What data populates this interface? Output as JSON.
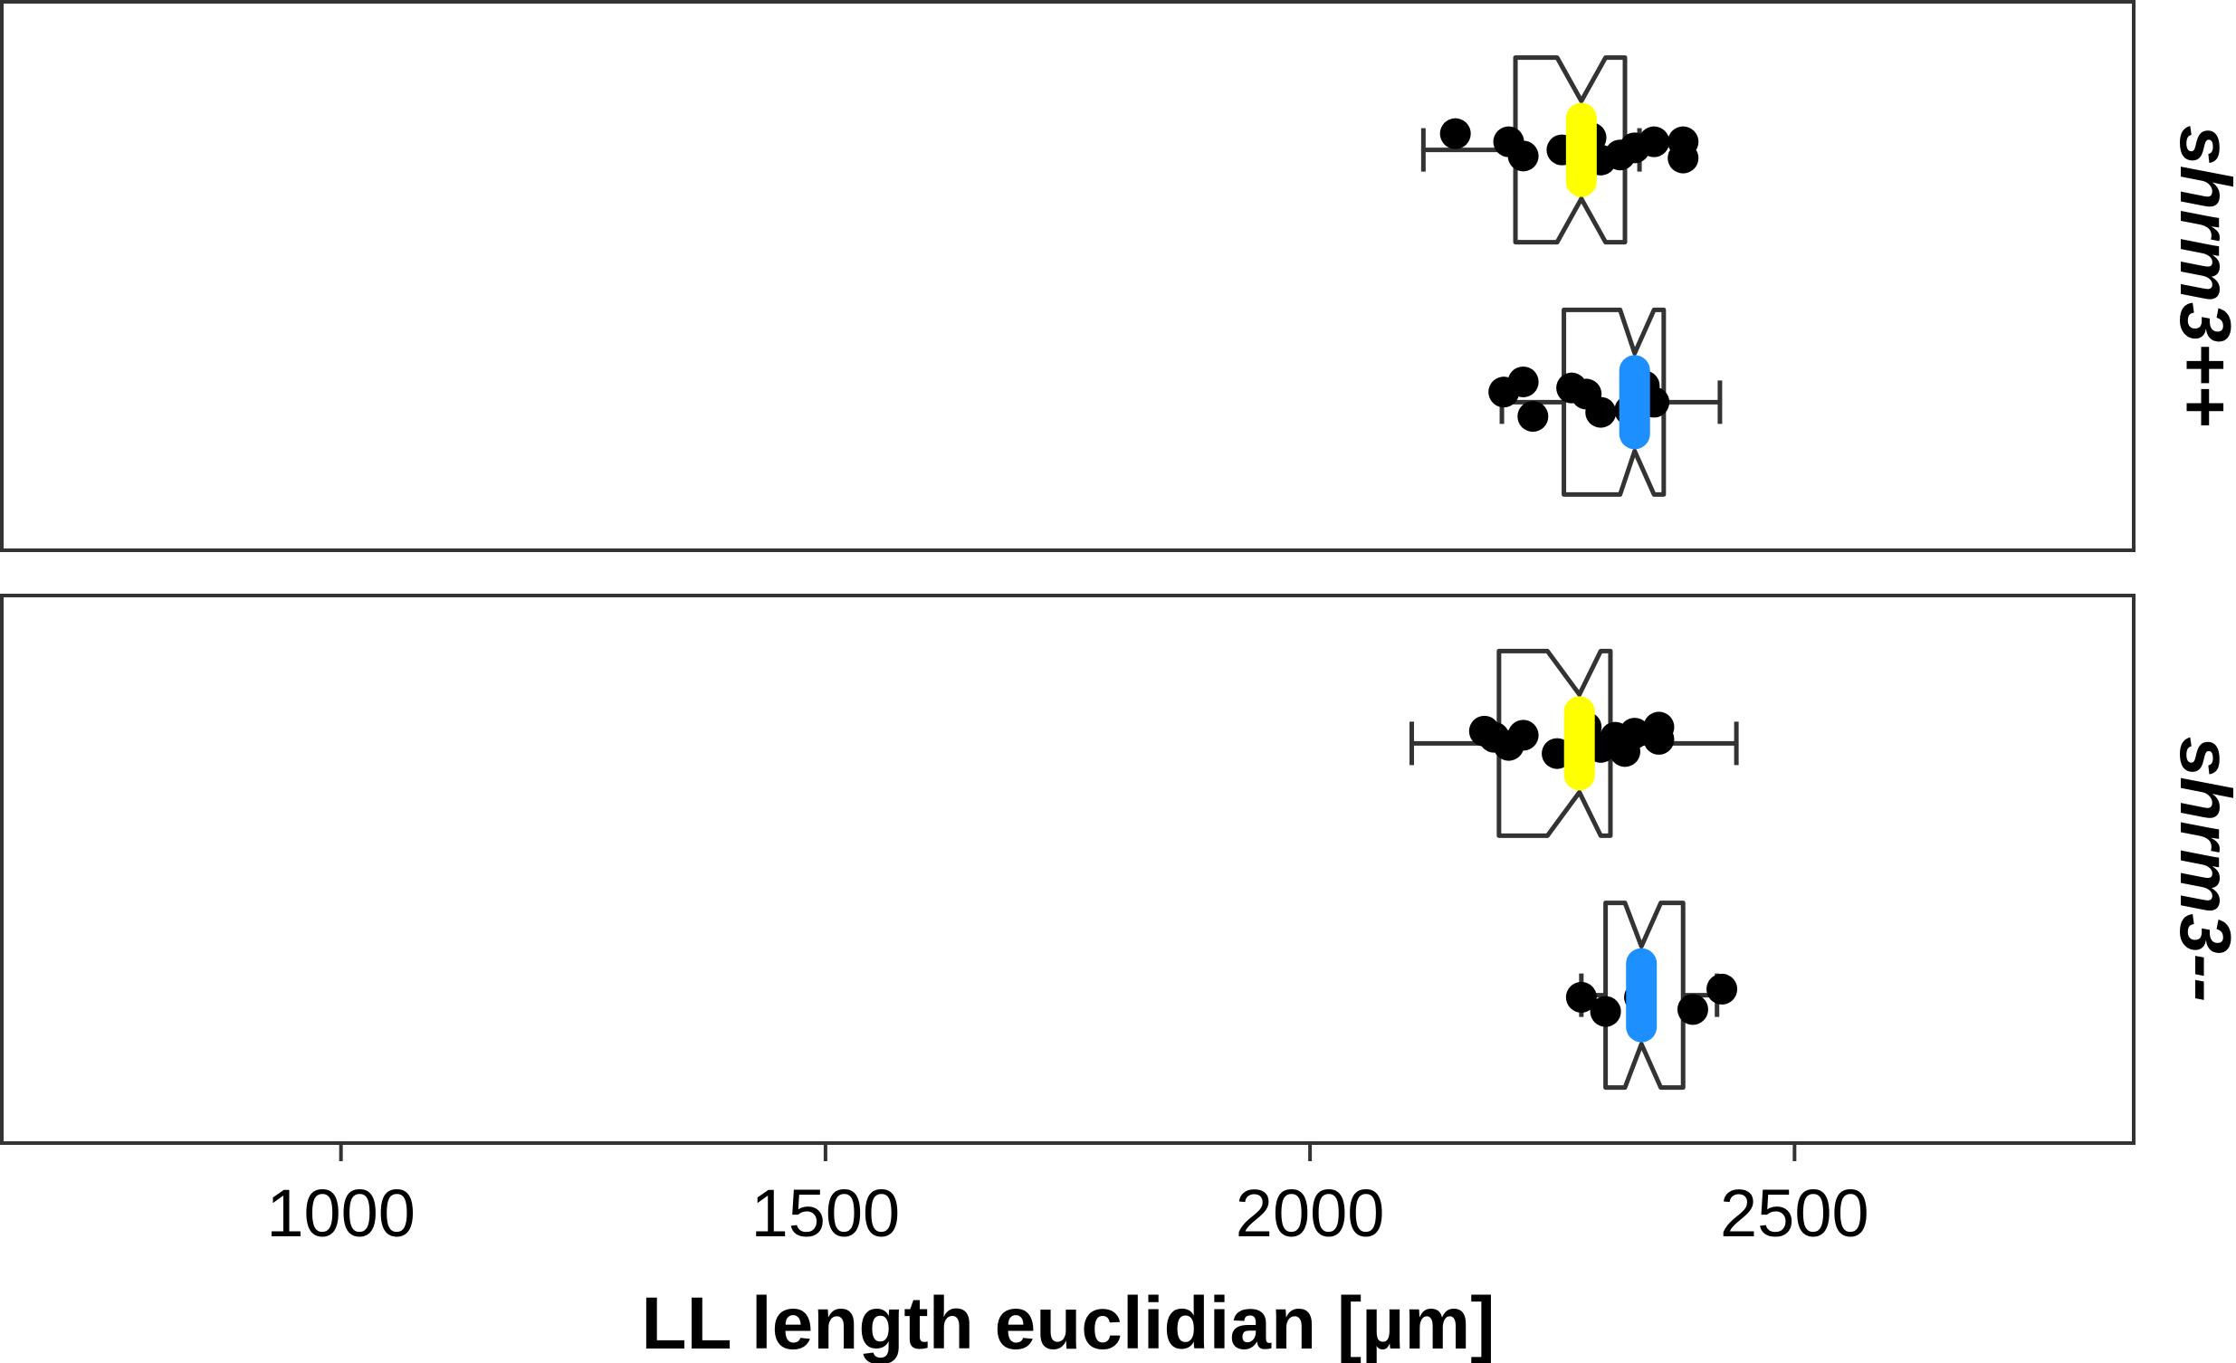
{
  "chart_data": {
    "type": "box",
    "xlabel": "LL length euclidian [µm]",
    "x_ticks": [
      1000,
      1500,
      2000,
      2500
    ],
    "xlim": [
      650,
      2850
    ],
    "grid": false,
    "colors": [
      "#ffff00",
      "#1e8fff"
    ],
    "panels": [
      {
        "label": "shrm3++",
        "boxes": [
          {
            "color": "#ffff00",
            "whisker_low": 2117,
            "q1": 2212,
            "median": 2280,
            "q3": 2325,
            "whisker_high": 2340,
            "notch_low": 2255,
            "notch_high": 2305,
            "points": [
              {
                "x": 2150,
                "y": 0.66
              },
              {
                "x": 2205,
                "y": 0.58
              },
              {
                "x": 2220,
                "y": 0.44
              },
              {
                "x": 2260,
                "y": 0.5
              },
              {
                "x": 2290,
                "y": 0.62
              },
              {
                "x": 2320,
                "y": 0.45
              },
              {
                "x": 2335,
                "y": 0.52
              },
              {
                "x": 2355,
                "y": 0.58
              },
              {
                "x": 2385,
                "y": 0.58
              },
              {
                "x": 2385,
                "y": 0.42
              },
              {
                "x": 2300,
                "y": 0.4
              }
            ]
          },
          {
            "color": "#1e8fff",
            "whisker_low": 2198,
            "q1": 2262,
            "median": 2335,
            "q3": 2365,
            "whisker_high": 2423,
            "notch_low": 2320,
            "notch_high": 2355,
            "points": [
              {
                "x": 2200,
                "y": 0.6
              },
              {
                "x": 2220,
                "y": 0.7
              },
              {
                "x": 2230,
                "y": 0.36
              },
              {
                "x": 2270,
                "y": 0.64
              },
              {
                "x": 2285,
                "y": 0.58
              },
              {
                "x": 2300,
                "y": 0.4
              },
              {
                "x": 2345,
                "y": 0.66
              },
              {
                "x": 2355,
                "y": 0.5
              },
              {
                "x": 2330,
                "y": 0.42
              }
            ]
          }
        ]
      },
      {
        "label": "shrm3--",
        "boxes": [
          {
            "color": "#ffff00",
            "whisker_low": 2105,
            "q1": 2195,
            "median": 2278,
            "q3": 2310,
            "whisker_high": 2440,
            "notch_low": 2245,
            "notch_high": 2300,
            "points": [
              {
                "x": 2180,
                "y": 0.62
              },
              {
                "x": 2190,
                "y": 0.56
              },
              {
                "x": 2205,
                "y": 0.48
              },
              {
                "x": 2220,
                "y": 0.58
              },
              {
                "x": 2255,
                "y": 0.4
              },
              {
                "x": 2285,
                "y": 0.66
              },
              {
                "x": 2300,
                "y": 0.46
              },
              {
                "x": 2315,
                "y": 0.56
              },
              {
                "x": 2325,
                "y": 0.42
              },
              {
                "x": 2335,
                "y": 0.6
              },
              {
                "x": 2360,
                "y": 0.66
              },
              {
                "x": 2360,
                "y": 0.54
              }
            ]
          },
          {
            "color": "#1e8fff",
            "whisker_low": 2280,
            "q1": 2305,
            "median": 2342,
            "q3": 2385,
            "whisker_high": 2420,
            "notch_low": 2325,
            "notch_high": 2362,
            "points": [
              {
                "x": 2280,
                "y": 0.48
              },
              {
                "x": 2305,
                "y": 0.34
              },
              {
                "x": 2395,
                "y": 0.36
              },
              {
                "x": 2425,
                "y": 0.56
              },
              {
                "x": 2340,
                "y": 0.48
              }
            ]
          }
        ]
      }
    ]
  }
}
